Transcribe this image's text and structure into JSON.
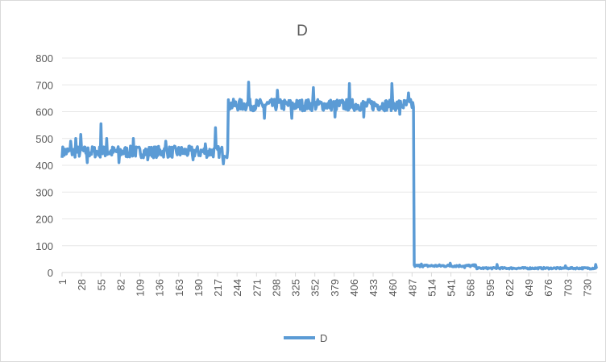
{
  "chart_data": {
    "type": "line",
    "title": "D",
    "xlabel": "",
    "ylabel": "",
    "ylim": [
      0,
      800
    ],
    "yticks": [
      0,
      100,
      200,
      300,
      400,
      500,
      600,
      700,
      800
    ],
    "xlim": [
      1,
      744
    ],
    "xticks": [
      1,
      28,
      55,
      82,
      109,
      136,
      163,
      190,
      217,
      244,
      271,
      298,
      325,
      352,
      379,
      406,
      433,
      460,
      487,
      514,
      541,
      568,
      595,
      622,
      649,
      676,
      703,
      730
    ],
    "grid": true,
    "legend": "bottom",
    "series": [
      {
        "name": "D",
        "color": "#5b9bd5",
        "segments": [
          {
            "start": 1,
            "end": 231,
            "mean": 450,
            "amp": 22,
            "spikes": [
              [
                13,
                490
              ],
              [
                20,
                500
              ],
              [
                27,
                515
              ],
              [
                36,
                410
              ],
              [
                55,
                555
              ],
              [
                63,
                500
              ],
              [
                80,
                410
              ],
              [
                100,
                500
              ],
              [
                120,
                420
              ],
              [
                145,
                490
              ],
              [
                183,
                420
              ],
              [
                200,
                480
              ],
              [
                214,
                540
              ],
              [
                225,
                405
              ]
            ]
          },
          {
            "start": 232,
            "end": 489,
            "mean": 625,
            "amp": 22,
            "spikes": [
              [
                260,
                710
              ],
              [
                282,
                575
              ],
              [
                300,
                680
              ],
              [
                320,
                575
              ],
              [
                350,
                690
              ],
              [
                380,
                580
              ],
              [
                400,
                705
              ],
              [
                420,
                580
              ],
              [
                459,
                705
              ],
              [
                470,
                590
              ],
              [
                482,
                670
              ]
            ]
          },
          {
            "start": 490,
            "end": 576,
            "mean": 25,
            "amp": 4,
            "spikes": [
              [
                500,
                32
              ],
              [
                540,
                35
              ],
              [
                560,
                18
              ]
            ]
          },
          {
            "start": 577,
            "end": 744,
            "mean": 16,
            "amp": 3,
            "spikes": [
              [
                605,
                30
              ],
              [
                700,
                25
              ],
              [
                742,
                30
              ]
            ]
          }
        ]
      }
    ]
  }
}
